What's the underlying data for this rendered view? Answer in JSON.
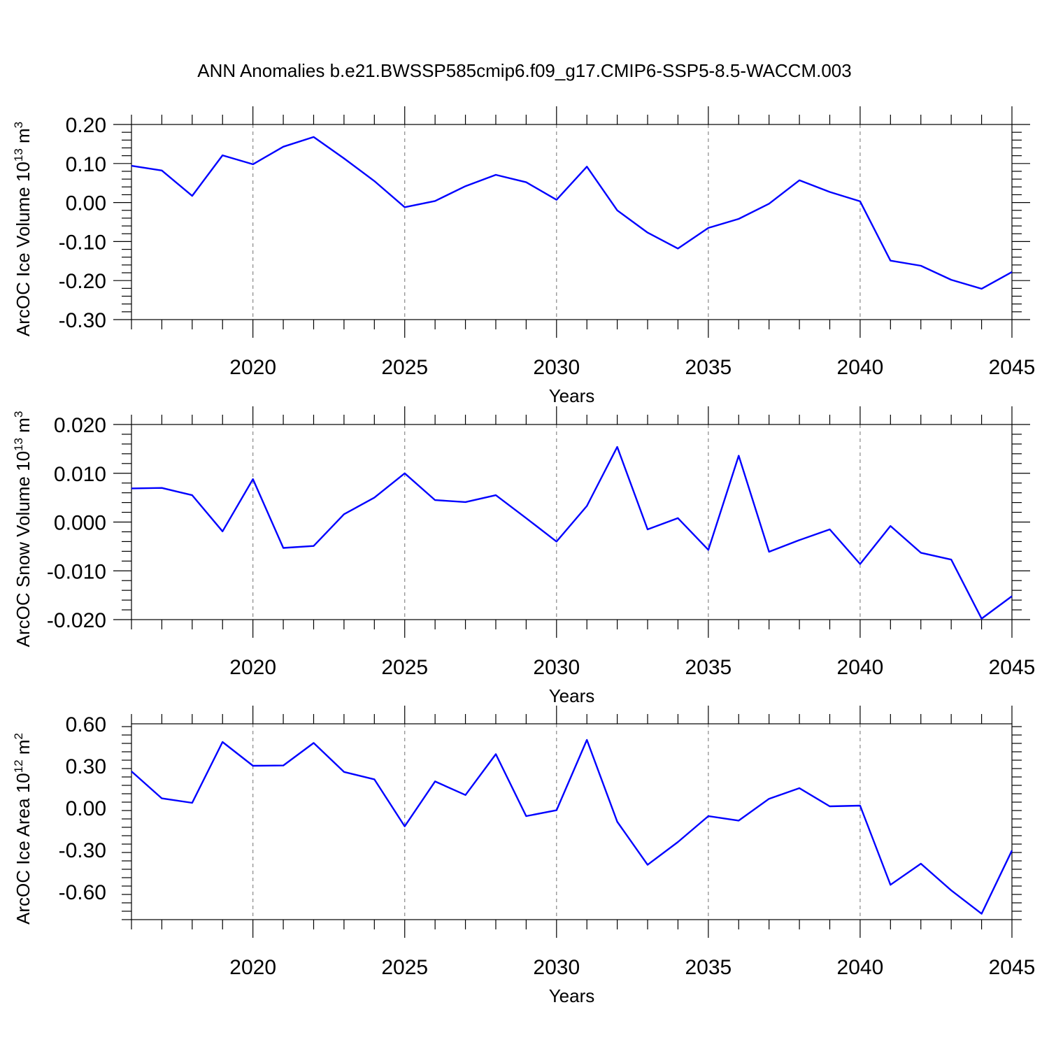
{
  "title": "ANN Anomalies b.e21.BWSSP585cmip6.f09_g17.CMIP6-SSP5-8.5-WACCM.003",
  "line_color": "#0000ff",
  "chart_data": [
    {
      "type": "line",
      "ylabel": {
        "text": "ArcOC Ice Volume 10",
        "sup": "13",
        "unit": " m",
        "unit_sup": "3"
      },
      "xlabel": "Years",
      "xlim": [
        2016,
        2045
      ],
      "ylim": [
        -0.3,
        0.2
      ],
      "xticks": [
        2020,
        2025,
        2030,
        2035,
        2040,
        2045
      ],
      "yticks": [
        0.2,
        0.1,
        0.0,
        -0.1,
        -0.2,
        -0.3
      ],
      "ytick_labels": [
        "0.20",
        "0.10",
        "0.00",
        "-0.10",
        "-0.20",
        "-0.30"
      ],
      "grid_x": true,
      "x": [
        2016,
        2017,
        2018,
        2019,
        2020,
        2021,
        2022,
        2023,
        2024,
        2025,
        2026,
        2027,
        2028,
        2029,
        2030,
        2031,
        2032,
        2033,
        2034,
        2035,
        2036,
        2037,
        2038,
        2039,
        2040,
        2041,
        2042,
        2043,
        2044,
        2045
      ],
      "y": [
        0.094,
        0.082,
        0.017,
        0.121,
        0.098,
        0.143,
        0.168,
        0.113,
        0.055,
        -0.012,
        0.004,
        0.042,
        0.071,
        0.052,
        0.007,
        0.092,
        -0.02,
        -0.077,
        -0.118,
        -0.065,
        -0.042,
        -0.003,
        0.057,
        0.027,
        0.003,
        -0.149,
        -0.162,
        -0.198,
        -0.221,
        -0.178
      ]
    },
    {
      "type": "line",
      "ylabel": {
        "text": "ArcOC Snow Volume 10",
        "sup": "13",
        "unit": " m",
        "unit_sup": "3"
      },
      "xlabel": "Years",
      "xlim": [
        2016,
        2045
      ],
      "ylim": [
        -0.02,
        0.02
      ],
      "xticks": [
        2020,
        2025,
        2030,
        2035,
        2040,
        2045
      ],
      "yticks": [
        0.02,
        0.01,
        0.0,
        -0.01,
        -0.02
      ],
      "ytick_labels": [
        "0.020",
        "0.010",
        "0.000",
        "-0.010",
        "-0.020"
      ],
      "grid_x": true,
      "x": [
        2016,
        2017,
        2018,
        2019,
        2020,
        2021,
        2022,
        2023,
        2024,
        2025,
        2026,
        2027,
        2028,
        2029,
        2030,
        2031,
        2032,
        2033,
        2034,
        2035,
        2036,
        2037,
        2038,
        2039,
        2040,
        2041,
        2042,
        2043,
        2044,
        2045
      ],
      "y": [
        0.0069,
        0.007,
        0.0055,
        -0.0019,
        0.0088,
        -0.0053,
        -0.0049,
        0.0016,
        0.005,
        0.01,
        0.0045,
        0.0041,
        0.0055,
        0.0008,
        -0.004,
        0.0033,
        0.0154,
        -0.0015,
        0.0008,
        -0.0057,
        0.0136,
        -0.0061,
        -0.0037,
        -0.0015,
        -0.0086,
        -0.0008,
        -0.0063,
        -0.0077,
        -0.0198,
        -0.0152
      ]
    },
    {
      "type": "line",
      "ylabel": {
        "text": "ArcOC Ice Area 10",
        "sup": "12",
        "unit": " m",
        "unit_sup": "2"
      },
      "xlabel": "Years",
      "xlim": [
        2016,
        2045
      ],
      "ylim": [
        -0.8,
        0.6
      ],
      "xticks": [
        2020,
        2025,
        2030,
        2035,
        2040,
        2045
      ],
      "yticks": [
        0.6,
        0.3,
        0.0,
        -0.3,
        -0.6
      ],
      "ytick_labels": [
        "0.60",
        "0.30",
        "0.00",
        "-0.30",
        "-0.60"
      ],
      "grid_x": true,
      "x": [
        2016,
        2017,
        2018,
        2019,
        2020,
        2021,
        2022,
        2023,
        2024,
        2025,
        2026,
        2027,
        2028,
        2029,
        2030,
        2031,
        2032,
        2033,
        2034,
        2035,
        2036,
        2037,
        2038,
        2039,
        2040,
        2041,
        2042,
        2043,
        2044,
        2045
      ],
      "y": [
        0.26,
        0.067,
        0.035,
        0.47,
        0.3,
        0.302,
        0.463,
        0.256,
        0.203,
        -0.133,
        0.188,
        0.091,
        0.383,
        -0.06,
        -0.018,
        0.485,
        -0.1,
        -0.408,
        -0.245,
        -0.06,
        -0.092,
        0.064,
        0.14,
        0.01,
        0.015,
        -0.551,
        -0.4,
        -0.591,
        -0.758,
        -0.306
      ]
    }
  ]
}
